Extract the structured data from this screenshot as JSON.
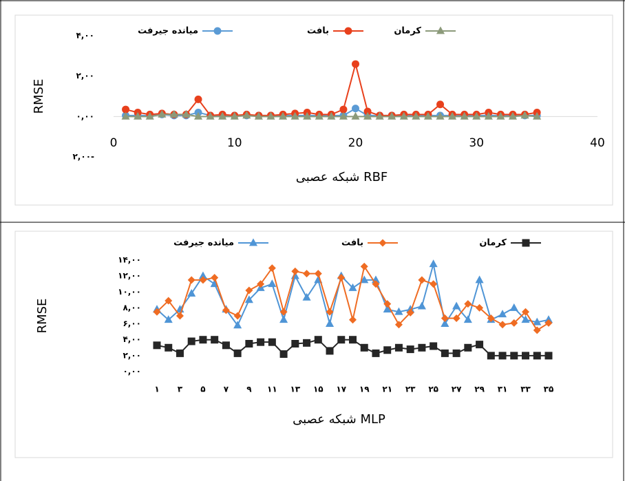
{
  "chart_data": [
    {
      "type": "line",
      "x_title": "شبکه عصبی RBF",
      "y_title": "RMSE",
      "x": [
        1,
        2,
        3,
        4,
        5,
        6,
        7,
        8,
        9,
        10,
        11,
        12,
        13,
        14,
        15,
        16,
        17,
        18,
        19,
        20,
        21,
        22,
        23,
        24,
        25,
        26,
        27,
        28,
        29,
        30,
        31,
        32,
        33,
        34,
        35
      ],
      "series": [
        {
          "name": "میانده جیرفت",
          "color": "#5b9bd5",
          "marker": "circle",
          "values": [
            0.05,
            0.05,
            0.05,
            0.1,
            0.05,
            0.05,
            0.2,
            0.05,
            0.05,
            0.05,
            0.05,
            0.05,
            0.05,
            0.05,
            0.05,
            0.05,
            0.05,
            0.05,
            0.05,
            0.4,
            0.05,
            0.05,
            0.05,
            0.05,
            0.05,
            0.05,
            0.05,
            0.05,
            0.05,
            0.05,
            0.05,
            0.05,
            0.05,
            0.05,
            0.05
          ]
        },
        {
          "name": "بافت",
          "color": "#e8401c",
          "marker": "circle",
          "values": [
            0.35,
            0.2,
            0.1,
            0.15,
            0.1,
            0.1,
            0.85,
            0.05,
            0.1,
            0.05,
            0.1,
            0.05,
            0.05,
            0.1,
            0.15,
            0.2,
            0.1,
            0.1,
            0.35,
            2.6,
            0.25,
            0.05,
            0.05,
            0.1,
            0.1,
            0.1,
            0.6,
            0.1,
            0.1,
            0.1,
            0.2,
            0.1,
            0.1,
            0.1,
            0.2
          ]
        },
        {
          "name": "کرمان",
          "color": "#8c9a7a",
          "marker": "triangle",
          "values": [
            0,
            0,
            0,
            0.1,
            0.1,
            0.1,
            0,
            0,
            0,
            0,
            0.05,
            0,
            0,
            0,
            0,
            0,
            0,
            0,
            0,
            0,
            0,
            0,
            0,
            0,
            0,
            0,
            0,
            0,
            0,
            0,
            0,
            0,
            0,
            0.05,
            0
          ]
        }
      ],
      "xlim": [
        0,
        40
      ],
      "xticks": [
        0,
        10,
        20,
        30,
        40
      ],
      "ylim": [
        -2,
        4
      ],
      "yticks": [
        {
          "value": -2,
          "label": "۲,۰۰-"
        },
        {
          "value": 0,
          "label": "۰,۰۰"
        },
        {
          "value": 2,
          "label": "۲,۰۰"
        },
        {
          "value": 4,
          "label": "۴,۰۰"
        }
      ],
      "grid": false
    },
    {
      "type": "line",
      "x_title": "شبکه عصبی MLP",
      "y_title": "RMSE",
      "categories": [
        "۱",
        null,
        "۳",
        null,
        "۵",
        null,
        "۷",
        null,
        "۹",
        null,
        "۱۱",
        null,
        "۱۳",
        null,
        "۱۵",
        null,
        "۱۷",
        null,
        "۱۹",
        null,
        "۲۱",
        null,
        "۲۳",
        null,
        "۲۵",
        null,
        "۲۷",
        null,
        "۲۹",
        null,
        "۳۱",
        null,
        "۳۳",
        null,
        "۳۵"
      ],
      "series": [
        {
          "name": "میانده جیرفت",
          "color": "#4f95d6",
          "marker": "triangle",
          "values": [
            7.8,
            6.5,
            7.8,
            9.8,
            12.0,
            11.0,
            7.8,
            5.8,
            9.0,
            10.5,
            11.0,
            6.5,
            12.0,
            9.3,
            11.5,
            6.0,
            12.0,
            10.5,
            11.5,
            11.5,
            7.8,
            7.5,
            7.8,
            8.2,
            13.5,
            6.0,
            8.2,
            6.5,
            11.5,
            6.5,
            7.2,
            8.0,
            6.5,
            6.2,
            6.5
          ]
        },
        {
          "name": "بافت",
          "color": "#ef6c23",
          "marker": "diamond",
          "values": [
            7.5,
            8.9,
            7.0,
            11.5,
            11.5,
            11.8,
            7.7,
            7.0,
            10.2,
            11.0,
            13.0,
            7.5,
            12.6,
            12.3,
            12.3,
            7.5,
            11.8,
            6.5,
            13.2,
            11.0,
            8.5,
            5.9,
            7.4,
            11.5,
            11.0,
            6.7,
            6.7,
            8.5,
            8.0,
            6.7,
            5.9,
            6.1,
            7.5,
            5.2,
            6.1
          ]
        },
        {
          "name": "کرمان",
          "color": "#262626",
          "marker": "square",
          "values": [
            3.3,
            3.0,
            2.3,
            3.8,
            4.0,
            4.0,
            3.3,
            2.3,
            3.5,
            3.7,
            3.7,
            2.2,
            3.5,
            3.6,
            4.0,
            2.6,
            4.0,
            4.0,
            3.0,
            2.3,
            2.7,
            3.0,
            2.8,
            3.0,
            3.2,
            2.3,
            2.3,
            3.0,
            3.4,
            2.0,
            2.0,
            2.0,
            2.0,
            2.0,
            2.0
          ]
        }
      ],
      "ylim": [
        0,
        14
      ],
      "yticks": [
        {
          "value": 0,
          "label": "۰,۰۰"
        },
        {
          "value": 2,
          "label": "۲,۰۰"
        },
        {
          "value": 4,
          "label": "۴,۰۰"
        },
        {
          "value": 6,
          "label": "۶,۰۰"
        },
        {
          "value": 8,
          "label": "۸,۰۰"
        },
        {
          "value": 10,
          "label": "۱۰,۰۰"
        },
        {
          "value": 12,
          "label": "۱۲,۰۰"
        },
        {
          "value": 14,
          "label": "۱۴,۰۰"
        }
      ],
      "grid": false
    }
  ]
}
